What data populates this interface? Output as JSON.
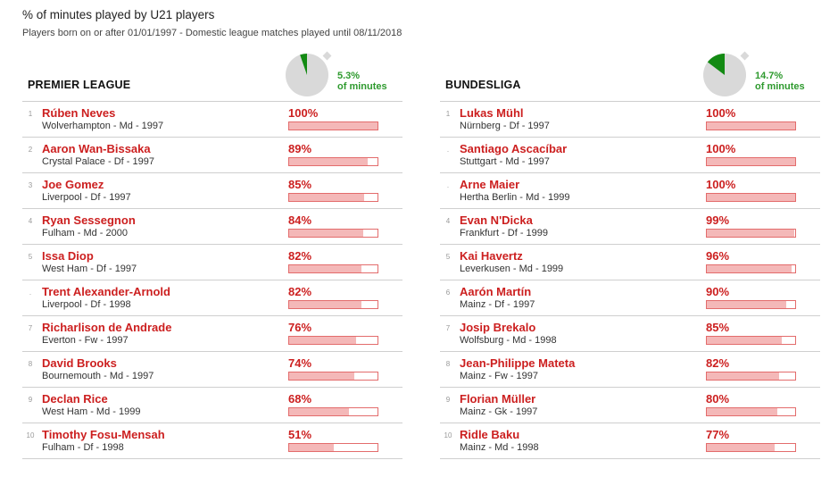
{
  "title": "% of minutes played by U21 players",
  "subtitle": "Players born on or after 01/01/1997 - Domestic league matches played until 08/11/2018",
  "colors": {
    "accent": "#cc1f1f",
    "bar_fill": "#f4b8b8",
    "bar_border": "#e36c6c",
    "dial_green": "#138a13",
    "dial_grey": "#d9d9d9",
    "pct_text": "#2e9a2e"
  },
  "chart_data": [
    {
      "type": "bar",
      "league": "PREMIER LEAGUE",
      "total_share": 5.3,
      "total_share_label": "5.3%",
      "total_share_caption": "of minutes",
      "xlim": [
        0,
        100
      ],
      "players": [
        {
          "rank": "1",
          "name": "Rúben Neves",
          "meta": "Wolverhampton - Md - 1997",
          "value": 100,
          "label": "100%"
        },
        {
          "rank": "2",
          "name": "Aaron Wan-Bissaka",
          "meta": "Crystal Palace - Df - 1997",
          "value": 89,
          "label": "89%"
        },
        {
          "rank": "3",
          "name": "Joe Gomez",
          "meta": "Liverpool - Df - 1997",
          "value": 85,
          "label": "85%"
        },
        {
          "rank": "4",
          "name": "Ryan Sessegnon",
          "meta": "Fulham - Md - 2000",
          "value": 84,
          "label": "84%"
        },
        {
          "rank": "5",
          "name": "Issa Diop",
          "meta": "West Ham - Df - 1997",
          "value": 82,
          "label": "82%"
        },
        {
          "rank": ".",
          "name": "Trent Alexander-Arnold",
          "meta": "Liverpool - Df - 1998",
          "value": 82,
          "label": "82%"
        },
        {
          "rank": "7",
          "name": "Richarlison de Andrade",
          "meta": "Everton - Fw - 1997",
          "value": 76,
          "label": "76%"
        },
        {
          "rank": "8",
          "name": "David Brooks",
          "meta": "Bournemouth - Md - 1997",
          "value": 74,
          "label": "74%"
        },
        {
          "rank": "9",
          "name": "Declan Rice",
          "meta": "West Ham - Md - 1999",
          "value": 68,
          "label": "68%"
        },
        {
          "rank": "10",
          "name": "Timothy Fosu-Mensah",
          "meta": "Fulham - Df - 1998",
          "value": 51,
          "label": "51%"
        }
      ]
    },
    {
      "type": "bar",
      "league": "BUNDESLIGA",
      "total_share": 14.7,
      "total_share_label": "14.7%",
      "total_share_caption": "of minutes",
      "xlim": [
        0,
        100
      ],
      "players": [
        {
          "rank": "1",
          "name": "Lukas Mühl",
          "meta": "Nürnberg - Df - 1997",
          "value": 100,
          "label": "100%"
        },
        {
          "rank": ".",
          "name": "Santiago Ascacíbar",
          "meta": "Stuttgart - Md - 1997",
          "value": 100,
          "label": "100%"
        },
        {
          "rank": ".",
          "name": "Arne Maier",
          "meta": "Hertha Berlin - Md - 1999",
          "value": 100,
          "label": "100%"
        },
        {
          "rank": "4",
          "name": "Evan N'Dicka",
          "meta": "Frankfurt - Df - 1999",
          "value": 99,
          "label": "99%"
        },
        {
          "rank": "5",
          "name": "Kai Havertz",
          "meta": "Leverkusen - Md - 1999",
          "value": 96,
          "label": "96%"
        },
        {
          "rank": "6",
          "name": "Aarón Martín",
          "meta": "Mainz - Df - 1997",
          "value": 90,
          "label": "90%"
        },
        {
          "rank": "7",
          "name": "Josip Brekalo",
          "meta": "Wolfsburg - Md - 1998",
          "value": 85,
          "label": "85%"
        },
        {
          "rank": "8",
          "name": "Jean-Philippe Mateta",
          "meta": "Mainz - Fw - 1997",
          "value": 82,
          "label": "82%"
        },
        {
          "rank": "9",
          "name": "Florian Müller",
          "meta": "Mainz - Gk - 1997",
          "value": 80,
          "label": "80%"
        },
        {
          "rank": "10",
          "name": "Ridle Baku",
          "meta": "Mainz - Md - 1998",
          "value": 77,
          "label": "77%"
        }
      ]
    }
  ]
}
